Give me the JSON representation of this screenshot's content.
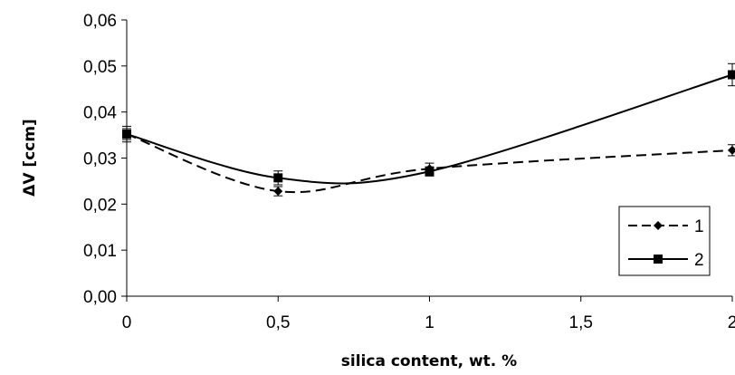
{
  "chart_data": {
    "type": "line",
    "xlabel": "silica content, wt. %",
    "ylabel": "ΔV [ccm]",
    "xlim": [
      0,
      2
    ],
    "ylim": [
      0,
      0.06
    ],
    "x_ticks": [
      0,
      0.5,
      1,
      1.5,
      2
    ],
    "x_tick_labels": [
      "0",
      "0,5",
      "1",
      "1,5",
      "2"
    ],
    "y_ticks": [
      0,
      0.01,
      0.02,
      0.03,
      0.04,
      0.05,
      0.06
    ],
    "y_tick_labels": [
      "0,00",
      "0,01",
      "0,02",
      "0,03",
      "0,04",
      "0,05",
      "0,06"
    ],
    "grid": false,
    "legend_position": "bottom-right",
    "x": [
      0,
      0.5,
      1,
      2
    ],
    "series": [
      {
        "name": "1",
        "marker": "diamond",
        "line_style": "dashed",
        "color": "#000000",
        "values": [
          0.0352,
          0.0228,
          0.0277,
          0.0317
        ],
        "errors": [
          0.0012,
          0.001,
          0.0012,
          0.0012
        ]
      },
      {
        "name": "2",
        "marker": "square",
        "line_style": "solid",
        "color": "#000000",
        "values": [
          0.0352,
          0.0257,
          0.0271,
          0.0481
        ],
        "errors": [
          0.0017,
          0.0015,
          0.001,
          0.0024
        ]
      }
    ]
  }
}
